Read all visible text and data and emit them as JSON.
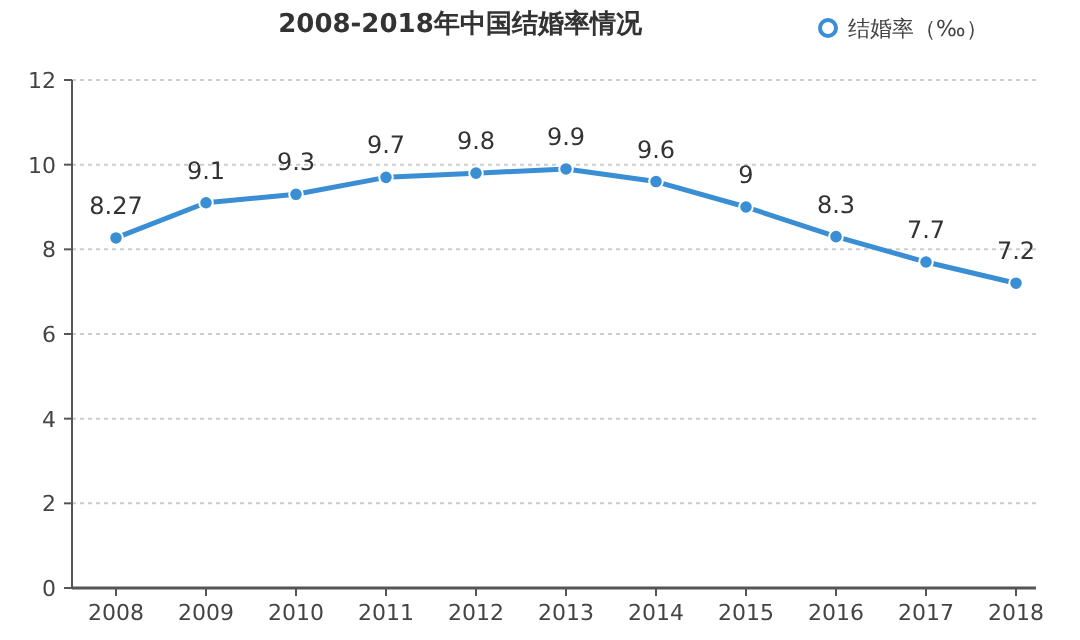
{
  "chart_data": {
    "type": "line",
    "title": "2008-2018年中国结婚率情况",
    "categories": [
      "2008",
      "2009",
      "2010",
      "2011",
      "2012",
      "2013",
      "2014",
      "2015",
      "2016",
      "2017",
      "2018"
    ],
    "series": [
      {
        "name": "结婚率（‰）",
        "color": "#3a8fd4",
        "values": [
          8.27,
          9.1,
          9.3,
          9.7,
          9.8,
          9.9,
          9.6,
          9,
          8.3,
          7.7,
          7.2
        ]
      }
    ],
    "ylim": [
      0,
      12
    ],
    "yticks": [
      0,
      2,
      4,
      6,
      8,
      10,
      12
    ],
    "grid": "y",
    "legend": "top right",
    "marker": "circle",
    "data_labels": true
  }
}
